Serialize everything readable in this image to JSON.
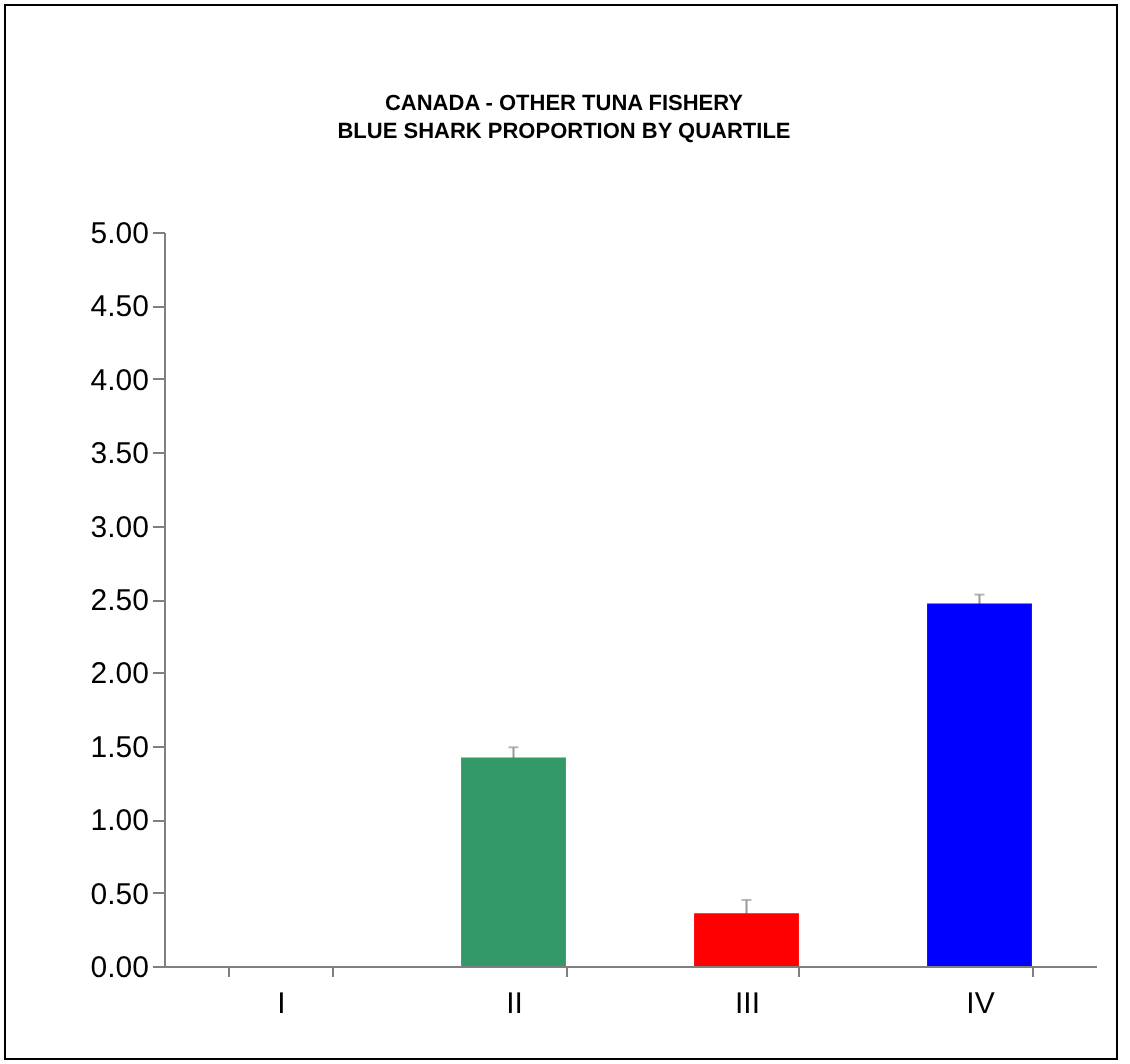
{
  "chart_data": {
    "type": "bar",
    "title": [
      "CANADA - OTHER TUNA FISHERY",
      "BLUE SHARK PROPORTION BY QUARTILE"
    ],
    "categories": [
      "I",
      "II",
      "III",
      "IV"
    ],
    "values": [
      0,
      1.42,
      0.36,
      2.47
    ],
    "errors": [
      null,
      0.07,
      0.09,
      0.06
    ],
    "colors": [
      "#9999ff",
      "#339966",
      "#ff0000",
      "#0000ff"
    ],
    "ylim": [
      0,
      5
    ],
    "yticks": [
      {
        "value": 0,
        "label": "0.00"
      },
      {
        "value": 0.5,
        "label": "0.50"
      },
      {
        "value": 1,
        "label": "1.00"
      },
      {
        "value": 1.5,
        "label": "1.50"
      },
      {
        "value": 2,
        "label": "2.00"
      },
      {
        "value": 2.5,
        "label": "2.50"
      },
      {
        "value": 3,
        "label": "3.00"
      },
      {
        "value": 3.5,
        "label": "3.50"
      },
      {
        "value": 4,
        "label": "4.00"
      },
      {
        "value": 4.5,
        "label": "4.50"
      },
      {
        "value": 5,
        "label": "5.00"
      }
    ],
    "grid": false,
    "legend": false
  }
}
